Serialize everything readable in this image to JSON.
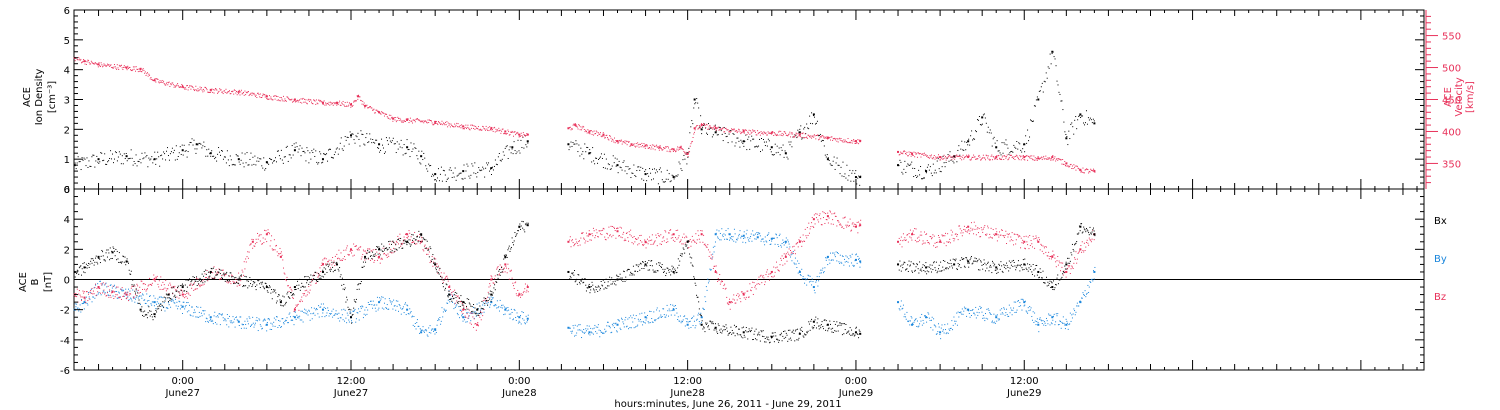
{
  "colors": {
    "black": "#000000",
    "red": "#e8315a",
    "blue": "#1a86dc",
    "frame": "#000000"
  },
  "xaxis": {
    "title": "hours:minutes, June 26, 2011 - June 29, 2011",
    "range_hours_from_june26_0000": [
      16.25,
      112.5
    ],
    "ticks": [
      {
        "hours": 24,
        "time": "0:00",
        "date": "June27"
      },
      {
        "hours": 36,
        "time": "12:00",
        "date": "June27"
      },
      {
        "hours": 48,
        "time": "0:00",
        "date": "June28"
      },
      {
        "hours": 60,
        "time": "12:00",
        "date": "June28"
      },
      {
        "hours": 72,
        "time": "0:00",
        "date": "June29"
      },
      {
        "hours": 84,
        "time": "12:00",
        "date": "June29"
      }
    ]
  },
  "chart_data": [
    {
      "type": "scatter",
      "panel": "top",
      "ylabel": [
        "ACE",
        "Ion Density",
        "[cm⁻³]"
      ],
      "ylim": [
        0,
        6
      ],
      "yticks": [
        "0",
        "1",
        "2",
        "3",
        "4",
        "5",
        "6"
      ],
      "y2label": [
        "ACE",
        "Velocity",
        "[km/s]"
      ],
      "y2lim": [
        310,
        590
      ],
      "y2ticks": [
        "350",
        "400",
        "450",
        "500",
        "550"
      ],
      "data_gaps_hours": [
        [
          48.6,
          51.5
        ],
        [
          72.3,
          75.0
        ]
      ],
      "series": [
        {
          "name": "Ion Density",
          "color": "#000000",
          "axis": "left",
          "x": [
            16.3,
            18,
            20,
            22,
            24,
            25,
            26,
            28,
            30,
            32,
            34,
            36,
            38,
            40,
            41,
            42,
            44,
            46,
            47.5,
            48.6,
            51.5,
            53,
            55,
            57,
            59,
            60,
            60.5,
            61,
            62,
            64,
            66,
            67,
            68,
            69,
            70,
            72,
            72.3,
            75,
            77,
            79,
            80,
            81,
            82,
            84,
            85,
            86,
            87,
            88,
            89
          ],
          "y": [
            0.8,
            1.0,
            1.1,
            1.0,
            1.3,
            1.5,
            1.2,
            1.0,
            0.9,
            1.3,
            1.0,
            1.8,
            1.5,
            1.4,
            1.1,
            0.5,
            0.6,
            0.7,
            1.4,
            1.6,
            1.5,
            1.2,
            0.8,
            0.5,
            0.4,
            1.2,
            3.0,
            2.0,
            1.9,
            1.6,
            1.4,
            1.2,
            1.9,
            2.5,
            1.0,
            0.4,
            0.4,
            0.8,
            0.6,
            1.1,
            1.6,
            2.4,
            1.4,
            1.5,
            3.0,
            4.6,
            1.7,
            2.5,
            2.2
          ]
        },
        {
          "name": "Velocity",
          "color": "#e8315a",
          "axis": "right",
          "x": [
            16.3,
            17,
            18,
            20,
            21,
            22,
            24,
            26,
            28,
            30,
            32,
            34,
            35,
            36,
            36.5,
            37,
            38,
            39,
            40,
            42,
            44,
            46,
            47,
            48,
            48.6,
            51.5,
            52,
            53,
            54,
            55,
            56,
            57,
            58,
            59,
            59.5,
            60,
            60.5,
            61,
            62,
            64,
            66,
            68,
            70,
            72,
            72.3,
            75,
            76,
            78,
            80,
            82,
            84,
            85,
            86,
            87,
            88,
            89
          ],
          "y": [
            515,
            510,
            505,
            500,
            498,
            480,
            470,
            465,
            462,
            455,
            450,
            445,
            445,
            442,
            455,
            440,
            430,
            420,
            418,
            415,
            408,
            405,
            400,
            395,
            395,
            405,
            410,
            400,
            395,
            385,
            380,
            378,
            375,
            372,
            375,
            365,
            405,
            410,
            405,
            400,
            398,
            395,
            390,
            385,
            385,
            368,
            365,
            360,
            360,
            360,
            360,
            358,
            360,
            350,
            340,
            338
          ]
        }
      ]
    },
    {
      "type": "scatter",
      "panel": "bottom",
      "ylabel": [
        "ACE",
        "B",
        "[nT]"
      ],
      "ylim": [
        -6,
        6
      ],
      "yticks": [
        "-6",
        "-4",
        "-2",
        "0",
        "2",
        "4",
        "6"
      ],
      "zero_line": true,
      "data_gaps_hours": [
        [
          48.6,
          51.5
        ],
        [
          72.3,
          75.0
        ]
      ],
      "legend": [
        "Bx",
        "By",
        "Bz"
      ],
      "series": [
        {
          "name": "Bx",
          "color": "#000000",
          "x": [
            16.3,
            17,
            18,
            19,
            20,
            21,
            22,
            23,
            24,
            26,
            28,
            30,
            31,
            32,
            34,
            35,
            36,
            37,
            38,
            40,
            41,
            42,
            43,
            44,
            45,
            46,
            47,
            48,
            48.6,
            51.5,
            53,
            55,
            57,
            59,
            60,
            61,
            62,
            64,
            66,
            68,
            69,
            70,
            72,
            72.3,
            75,
            77,
            79,
            80,
            82,
            84,
            85,
            86,
            87,
            88,
            89
          ],
          "y": [
            0.5,
            0.8,
            1.5,
            1.8,
            1.2,
            -2.0,
            -2.3,
            -1.0,
            -0.5,
            0.5,
            0.0,
            -0.5,
            -1.5,
            -0.5,
            0.5,
            1.0,
            -2.5,
            1.5,
            2.0,
            2.5,
            3.0,
            1.0,
            -1.0,
            -1.5,
            -2.0,
            -1.0,
            1.5,
            3.5,
            3.6,
            0.5,
            -0.5,
            0.0,
            1.0,
            0.5,
            2.5,
            -3.0,
            -3.2,
            -3.5,
            -3.8,
            -3.6,
            -2.8,
            -3.0,
            -3.5,
            -3.6,
            1.0,
            0.8,
            1.0,
            1.2,
            0.8,
            1.0,
            0.5,
            -0.5,
            1.0,
            3.5,
            3.0
          ]
        },
        {
          "name": "By",
          "color": "#1a86dc",
          "x": [
            16.3,
            17,
            18,
            20,
            22,
            24,
            26,
            28,
            30,
            32,
            34,
            36,
            38,
            40,
            41,
            42,
            43,
            44,
            46,
            47,
            48,
            48.6,
            51.5,
            53,
            55,
            57,
            59,
            60,
            61,
            62,
            63,
            64,
            65,
            66,
            67,
            68,
            69,
            70,
            72,
            72.3,
            75,
            76,
            77,
            78,
            80,
            82,
            84,
            85,
            86,
            87,
            88,
            89
          ],
          "y": [
            -2.0,
            -1.5,
            -0.5,
            -1.0,
            -1.5,
            -1.8,
            -2.5,
            -2.8,
            -3.0,
            -2.5,
            -2.0,
            -2.5,
            -1.5,
            -2.0,
            -3.5,
            -3.3,
            -1.0,
            -2.5,
            -1.5,
            -2.0,
            -2.5,
            -2.6,
            -3.2,
            -3.5,
            -3.0,
            -2.5,
            -2.0,
            -3.0,
            -2.5,
            3.0,
            3.0,
            2.9,
            2.8,
            2.7,
            2.5,
            0.5,
            -0.5,
            1.5,
            1.3,
            1.2,
            -1.5,
            -3.0,
            -2.5,
            -3.5,
            -2.0,
            -2.5,
            -1.5,
            -3.0,
            -2.5,
            -3.0,
            -1.5,
            0.5
          ]
        },
        {
          "name": "Bz",
          "color": "#e8315a",
          "x": [
            16.3,
            17,
            18,
            19,
            20,
            22,
            24,
            26,
            28,
            29,
            30,
            31,
            32,
            34,
            36,
            38,
            40,
            41,
            42,
            43,
            44,
            45,
            46,
            47,
            48,
            48.6,
            51.5,
            53,
            55,
            57,
            59,
            60,
            61,
            62,
            63,
            64,
            66,
            67,
            68,
            69,
            70,
            72,
            72.3,
            75,
            76,
            78,
            80,
            82,
            84,
            85,
            86,
            87,
            88,
            89
          ],
          "y": [
            -1.0,
            -1.2,
            -0.5,
            -0.8,
            -1.0,
            0.0,
            -1.0,
            0.5,
            0.0,
            2.5,
            3.0,
            1.5,
            -2.0,
            1.0,
            2.0,
            1.5,
            3.0,
            2.5,
            1.0,
            -0.5,
            -2.0,
            -3.0,
            0.0,
            1.0,
            -1.0,
            -0.5,
            2.5,
            3.0,
            3.2,
            2.5,
            3.0,
            2.5,
            3.0,
            0.5,
            -1.5,
            -1.0,
            0.5,
            1.5,
            2.5,
            4.0,
            4.2,
            3.5,
            3.6,
            2.5,
            3.0,
            2.5,
            3.5,
            3.0,
            2.5,
            2.5,
            1.5,
            0.5,
            2.0,
            3.0
          ]
        }
      ]
    }
  ]
}
